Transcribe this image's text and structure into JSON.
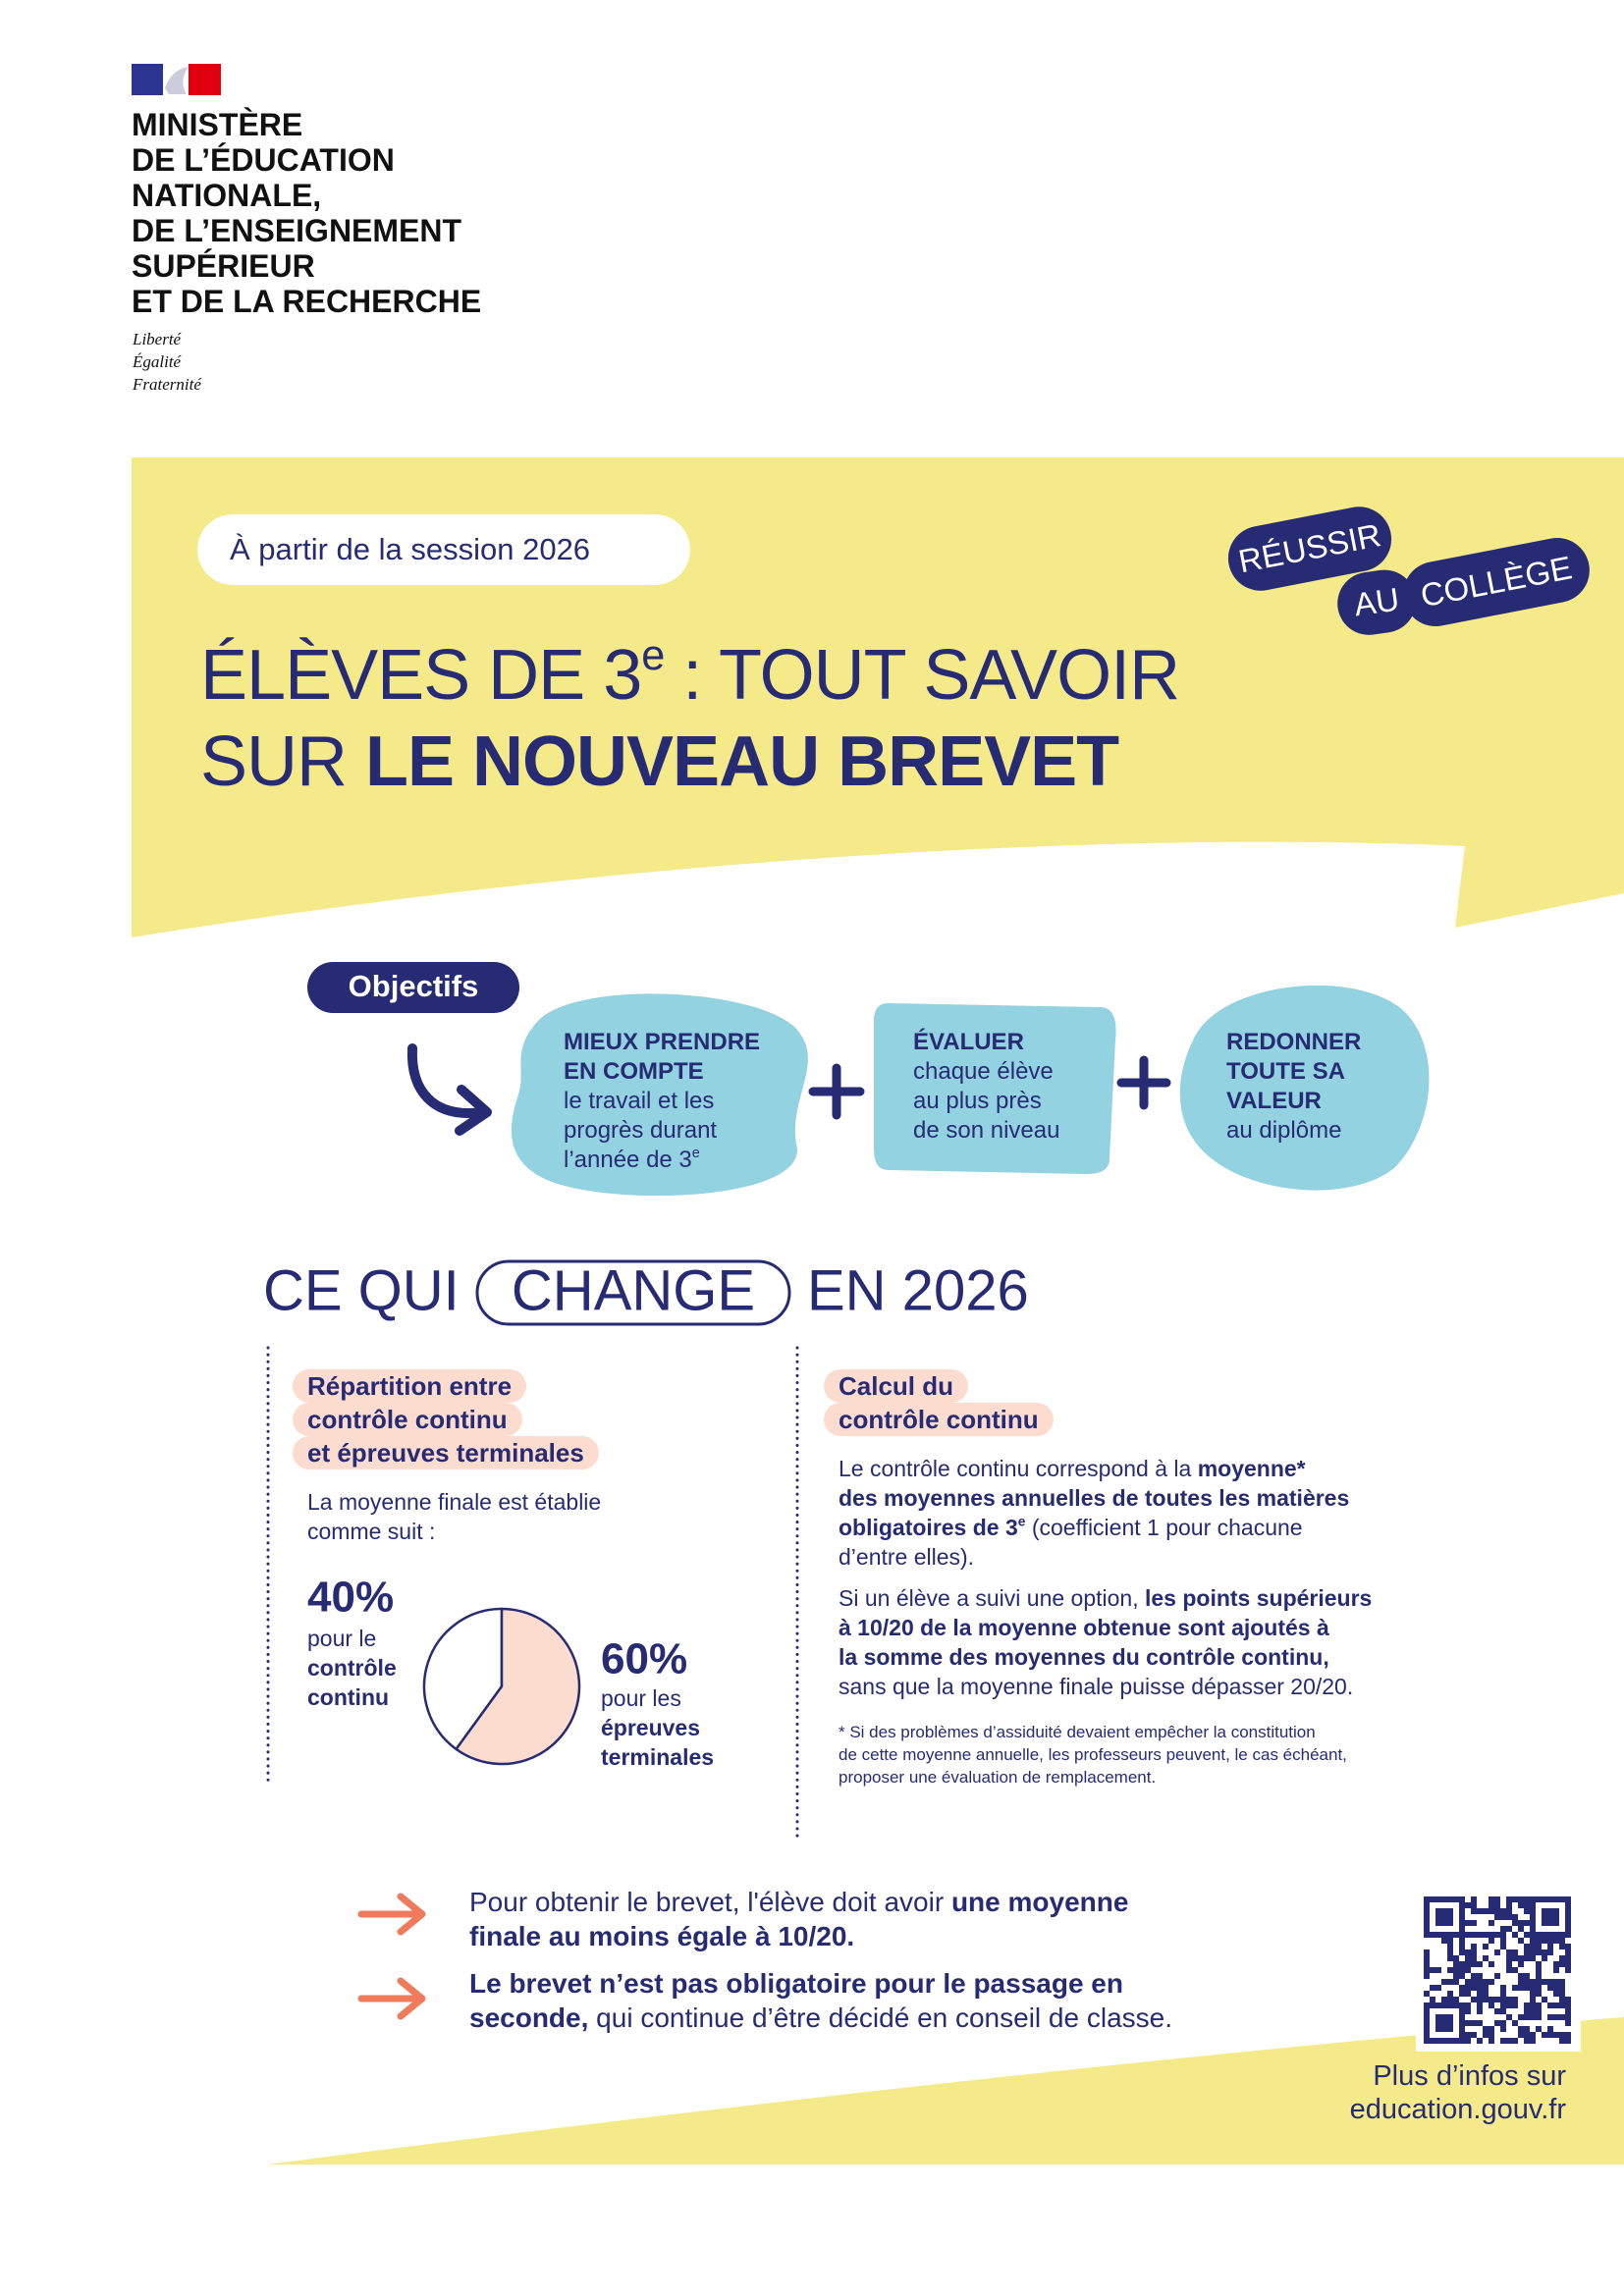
{
  "header": {
    "ministry": [
      "MINISTÈRE",
      "DE L’ÉDUCATION",
      "NATIONALE,",
      "DE L’ENSEIGNEMENT",
      "SUPÉRIEUR",
      "ET DE LA RECHERCHE"
    ],
    "motto": [
      "Liberté",
      "Égalité",
      "Fraternité"
    ]
  },
  "hero": {
    "session": "À partir de la session 2026",
    "title": {
      "lines": [
        [
          {
            "text": "ÉLÈVES DE 3"
          },
          {
            "text": "e",
            "sup": true
          },
          {
            "text": " : TOUT SAVOIR"
          }
        ],
        [
          {
            "text": "SUR "
          },
          {
            "text": "LE NOUVEAU BREVET",
            "bold": true
          }
        ]
      ]
    },
    "badge": [
      "RÉUSSIR",
      "AU",
      "COLLÈGE"
    ]
  },
  "objectives": {
    "label": "Objectifs",
    "items": [
      {
        "lines": [
          [
            {
              "text": "MIEUX PRENDRE",
              "bold": true
            }
          ],
          [
            {
              "text": "EN COMPTE",
              "bold": true
            }
          ],
          [
            {
              "text": "le travail et les"
            }
          ],
          [
            {
              "text": "progrès durant"
            }
          ],
          [
            {
              "text": "l’année de 3"
            },
            {
              "text": "e",
              "sup": true
            }
          ]
        ]
      },
      {
        "lines": [
          [
            {
              "text": "ÉVALUER",
              "bold": true
            }
          ],
          [
            {
              "text": "chaque élève"
            }
          ],
          [
            {
              "text": "au plus près"
            }
          ],
          [
            {
              "text": "de son niveau"
            }
          ]
        ]
      },
      {
        "lines": [
          [
            {
              "text": "REDONNER",
              "bold": true
            }
          ],
          [
            {
              "text": "TOUTE SA",
              "bold": true
            }
          ],
          [
            {
              "text": "VALEUR",
              "bold": true
            }
          ],
          [
            {
              "text": "au diplôme"
            }
          ]
        ]
      }
    ]
  },
  "changes": {
    "title": {
      "before": "CE QUI",
      "boxed": "CHANGE",
      "after": "EN 2026"
    },
    "left": {
      "heading": {
        "lines": [
          [
            {
              "text": "Répartition entre",
              "bold": true
            }
          ],
          [
            {
              "text": "contrôle continu",
              "bold": true
            }
          ],
          [
            {
              "text": "et épreuves terminales",
              "bold": true
            }
          ]
        ]
      },
      "intro": {
        "lines": [
          [
            {
              "text": "La moyenne finale est établie"
            }
          ],
          [
            {
              "text": "comme suit :"
            }
          ]
        ]
      },
      "pie": {
        "type": "pie",
        "values": [
          40,
          60
        ],
        "value_labels": [
          "40%",
          "60%"
        ],
        "colors": [
          "#ffffff",
          "#fbdccf"
        ],
        "captions": [
          {
            "lines": [
              [
                {
                  "text": "pour le"
                }
              ],
              [
                {
                  "text": "contrôle",
                  "bold": true
                }
              ],
              [
                {
                  "text": "continu",
                  "bold": true
                }
              ]
            ]
          },
          {
            "lines": [
              [
                {
                  "text": "pour les"
                }
              ],
              [
                {
                  "text": "épreuves",
                  "bold": true
                }
              ],
              [
                {
                  "text": "terminales",
                  "bold": true
                }
              ]
            ]
          }
        ]
      }
    },
    "right": {
      "heading": {
        "lines": [
          [
            {
              "text": "Calcul du",
              "bold": true
            }
          ],
          [
            {
              "text": "contrôle continu",
              "bold": true
            }
          ]
        ]
      },
      "paragraph1": {
        "lines": [
          [
            {
              "text": "Le contrôle continu correspond à la "
            },
            {
              "text": "moyenne*",
              "bold": true
            }
          ],
          [
            {
              "text": "des moyennes annuelles de toutes les matières",
              "bold": true
            }
          ],
          [
            {
              "text": "obligatoires de 3",
              "bold": true
            },
            {
              "text": "e",
              "bold": true,
              "sup": true
            },
            {
              "text": " (coefficient 1 pour chacune"
            }
          ],
          [
            {
              "text": "d’entre elles)."
            }
          ]
        ]
      },
      "paragraph2": {
        "lines": [
          [
            {
              "text": "Si un élève a suivi une option, "
            },
            {
              "text": "les points supérieurs",
              "bold": true
            }
          ],
          [
            {
              "text": "à 10/20 de la moyenne obtenue sont ajoutés à",
              "bold": true
            }
          ],
          [
            {
              "text": "la somme des moyennes du contrôle continu,",
              "bold": true
            }
          ],
          [
            {
              "text": "sans que la moyenne finale puisse dépasser 20/20."
            }
          ]
        ]
      },
      "footnote": {
        "lines": [
          [
            {
              "text": "* Si des problèmes d’assiduité devaient empêcher la constitution"
            }
          ],
          [
            {
              "text": "de cette moyenne annuelle, les professeurs peuvent, le cas échéant,"
            }
          ],
          [
            {
              "text": "proposer une évaluation de remplacement."
            }
          ]
        ]
      }
    }
  },
  "footer": {
    "items": [
      {
        "lines": [
          [
            {
              "text": "Pour obtenir le brevet, l'élève doit avoir "
            },
            {
              "text": "une moyenne",
              "bold": true
            }
          ],
          [
            {
              "text": "finale au moins égale à 10/20.",
              "bold": true
            }
          ]
        ]
      },
      {
        "lines": [
          [
            {
              "text": "Le brevet n’est pas obligatoire pour le passage en",
              "bold": true
            }
          ],
          [
            {
              "text": "seconde,",
              "bold": true
            },
            {
              "text": " qui continue d’être décidé en conseil de classe."
            }
          ]
        ]
      }
    ],
    "more_info": {
      "lines": [
        [
          {
            "text": "Plus d’infos sur"
          }
        ],
        [
          {
            "text": "education.gouv.fr"
          }
        ]
      ]
    }
  }
}
